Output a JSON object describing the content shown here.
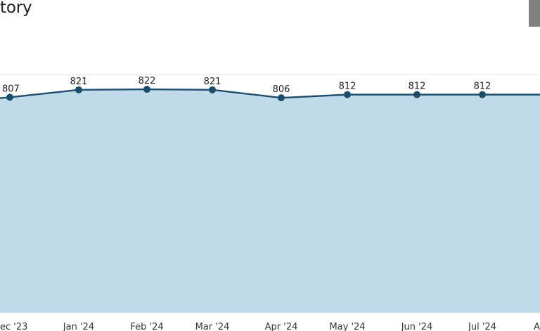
{
  "header": {
    "title": "tory",
    "corner_button_label": ""
  },
  "chart_data": {
    "type": "area",
    "title": "tory",
    "xlabel": "",
    "ylabel": "",
    "categories": [
      "ec '23",
      "Jan '24",
      "Feb '24",
      "Mar '24",
      "Apr '24",
      "May '24",
      "Jun '24",
      "Jul '24",
      "A"
    ],
    "values": [
      807,
      821,
      822,
      821,
      806,
      812,
      812,
      812,
      812
    ],
    "labels": [
      "807",
      "821",
      "822",
      "821",
      "806",
      "812",
      "812",
      "812",
      ""
    ],
    "ylim": [
      400,
      850
    ],
    "grid": true,
    "colors": {
      "line": "#1e4d6e",
      "fill": "#bcd9e8",
      "point": "#1a4c6c",
      "grid": "#e6e6e6"
    }
  }
}
